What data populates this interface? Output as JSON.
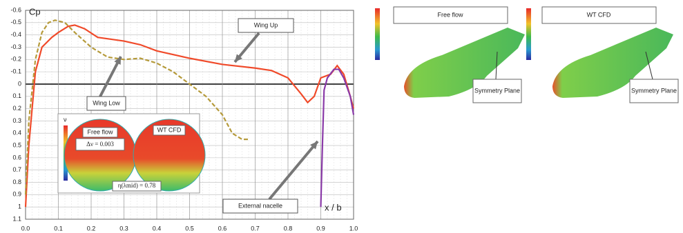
{
  "chart_data": {
    "type": "line",
    "y_label": "Cp",
    "x_label": "x / b",
    "xlim": [
      0,
      1.0
    ],
    "ylim": [
      -0.6,
      1.1
    ],
    "y_inverted": true,
    "grid": true,
    "xticks": [
      {
        "value": 0,
        "label": "0.0"
      },
      0.1,
      0.2,
      0.3,
      0.4,
      0.5,
      0.6,
      0.7,
      0.8,
      0.9,
      {
        "value": 1,
        "label": "1.0"
      }
    ],
    "yticks": [
      -0.6,
      -0.5,
      -0.4,
      -0.3,
      -0.2,
      -0.1,
      0,
      0.1,
      0.2,
      0.3,
      0.4,
      0.5,
      0.6,
      0.7,
      0.8,
      0.9,
      1,
      1.1
    ],
    "series": [
      {
        "name": "Wing Up",
        "color": "#f04a2a",
        "dash": false,
        "x": [
          0.0,
          0.01,
          0.03,
          0.05,
          0.08,
          0.1,
          0.13,
          0.15,
          0.18,
          0.22,
          0.3,
          0.35,
          0.4,
          0.5,
          0.6,
          0.7,
          0.75,
          0.8,
          0.84,
          0.86,
          0.88,
          0.9,
          0.93,
          0.95,
          0.97,
          0.99,
          1.0
        ],
        "values": [
          1.0,
          0.5,
          -0.1,
          -0.3,
          -0.38,
          -0.42,
          -0.47,
          -0.48,
          -0.45,
          -0.38,
          -0.35,
          -0.32,
          -0.27,
          -0.21,
          -0.16,
          -0.13,
          -0.11,
          -0.05,
          0.08,
          0.15,
          0.1,
          -0.05,
          -0.08,
          -0.15,
          -0.08,
          0.1,
          0.2
        ]
      },
      {
        "name": "Wing Low",
        "color": "#b59a3a",
        "dash": true,
        "x": [
          0.0,
          0.01,
          0.03,
          0.05,
          0.07,
          0.09,
          0.12,
          0.15,
          0.2,
          0.25,
          0.3,
          0.35,
          0.4,
          0.45,
          0.5,
          0.55,
          0.6,
          0.63,
          0.66,
          0.68
        ],
        "values": [
          0.9,
          0.3,
          -0.2,
          -0.42,
          -0.5,
          -0.52,
          -0.5,
          -0.42,
          -0.3,
          -0.22,
          -0.2,
          -0.21,
          -0.17,
          -0.1,
          0.0,
          0.1,
          0.25,
          0.4,
          0.45,
          0.45
        ]
      },
      {
        "name": "External nacelle",
        "color": "#8a3aa8",
        "dash": false,
        "x": [
          0.9,
          0.905,
          0.91,
          0.92,
          0.94,
          0.955,
          0.97,
          0.99,
          1.0
        ],
        "values": [
          1.0,
          0.5,
          0.05,
          -0.05,
          -0.12,
          -0.12,
          -0.05,
          0.1,
          0.25
        ]
      }
    ],
    "inset": {
      "symbol": "ν",
      "left": "Free flow",
      "right": "WT CFD",
      "delta": "Δν = 0.003",
      "eta": "η(λmid) = 0.78"
    },
    "panels": [
      {
        "title": "Free flow",
        "note": "Symmetry Plane"
      },
      {
        "title": "WT CFD",
        "note": "Symmetry Plane"
      }
    ]
  }
}
